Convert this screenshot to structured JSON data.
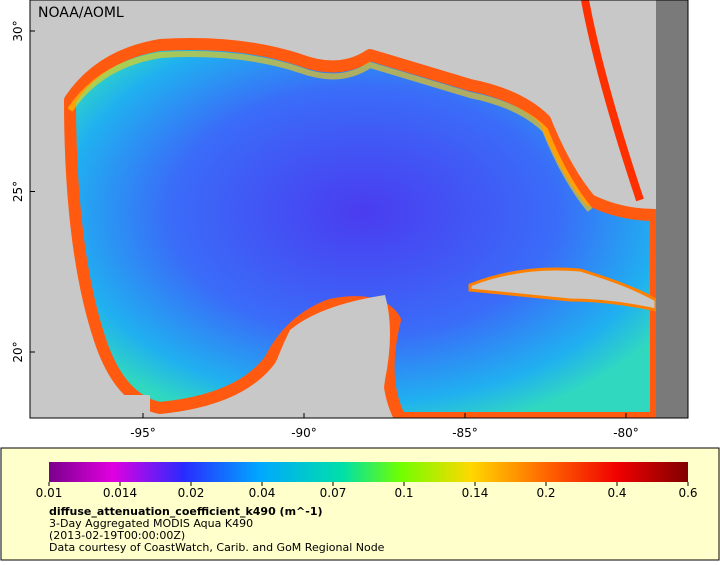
{
  "map": {
    "credit": "NOAA/AOML",
    "lat_ticks": [
      {
        "value": 30,
        "label": "30°"
      },
      {
        "value": 25,
        "label": "25°"
      },
      {
        "value": 20,
        "label": "20°"
      }
    ],
    "lon_ticks": [
      {
        "value": -95,
        "label": "-95°"
      },
      {
        "value": -90,
        "label": "-90°"
      },
      {
        "value": -85,
        "label": "-85°"
      },
      {
        "value": -80,
        "label": "-80°"
      }
    ]
  },
  "legend": {
    "ticks": [
      0.01,
      0.014,
      0.02,
      0.04,
      0.07,
      0.1,
      0.14,
      0.2,
      0.4,
      0.6
    ],
    "title": "diffuse_attenuation_coefficient_k490 (m^-1)",
    "lines": [
      "3-Day Aggregated MODIS Aqua K490",
      "(2013-02-19T00:00:00Z)",
      "Data courtesy of CoastWatch, Carib. and GoM Regional Node"
    ]
  }
}
